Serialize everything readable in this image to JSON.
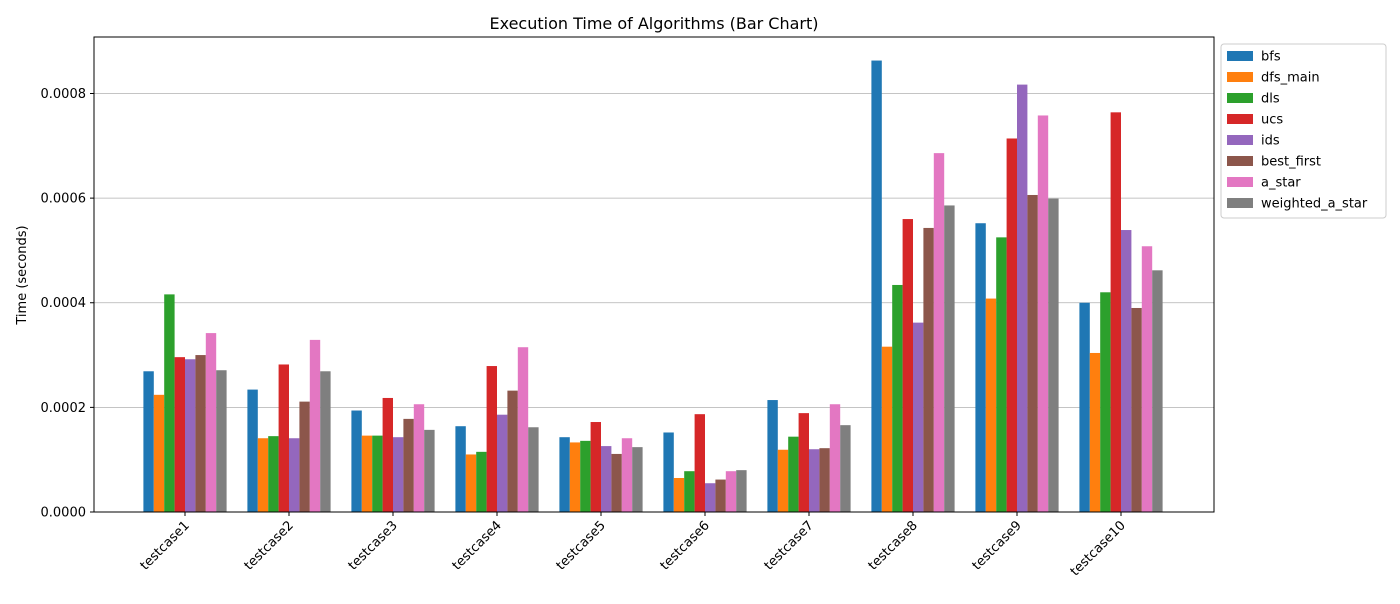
{
  "chart_data": {
    "type": "bar",
    "title": "Execution Time of Algorithms (Bar Chart)",
    "xlabel": "",
    "ylabel": "Time (seconds)",
    "ylim": [
      0,
      0.000908
    ],
    "yticks": [
      "0.0000",
      "0.0002",
      "0.0004",
      "0.0006",
      "0.0008"
    ],
    "ytick_values": [
      0,
      0.0002,
      0.0004,
      0.0006,
      0.0008
    ],
    "grid": "horizontal",
    "legend_position": "top-right (outside plot)",
    "categories": [
      "testcase1",
      "testcase2",
      "testcase3",
      "testcase4",
      "testcase5",
      "testcase6",
      "testcase7",
      "testcase8",
      "testcase9",
      "testcase10"
    ],
    "series": [
      {
        "name": "bfs",
        "color": "#1f77b4",
        "values": [
          0.000269,
          0.000234,
          0.000194,
          0.000164,
          0.000143,
          0.000152,
          0.000214,
          0.000863,
          0.000552,
          0.0004
        ]
      },
      {
        "name": "dfs_main",
        "color": "#ff7f0e",
        "values": [
          0.000224,
          0.000141,
          0.000146,
          0.00011,
          0.000133,
          6.5e-05,
          0.000119,
          0.000316,
          0.000408,
          0.000304
        ]
      },
      {
        "name": "dls",
        "color": "#2ca02c",
        "values": [
          0.000416,
          0.000145,
          0.000146,
          0.000115,
          0.000136,
          7.8e-05,
          0.000144,
          0.000434,
          0.000525,
          0.00042
        ]
      },
      {
        "name": "ucs",
        "color": "#d62728",
        "values": [
          0.000296,
          0.000282,
          0.000218,
          0.000279,
          0.000172,
          0.000187,
          0.000189,
          0.00056,
          0.000714,
          0.000764
        ]
      },
      {
        "name": "ids",
        "color": "#9467bd",
        "values": [
          0.000292,
          0.000141,
          0.000143,
          0.000186,
          0.000126,
          5.5e-05,
          0.00012,
          0.000362,
          0.000817,
          0.000539
        ]
      },
      {
        "name": "best_first",
        "color": "#8c564b",
        "values": [
          0.0003,
          0.000211,
          0.000178,
          0.000232,
          0.000111,
          6.2e-05,
          0.000122,
          0.000543,
          0.000606,
          0.00039
        ]
      },
      {
        "name": "a_star",
        "color": "#e377c2",
        "values": [
          0.000342,
          0.000329,
          0.000206,
          0.000315,
          0.000141,
          7.8e-05,
          0.000206,
          0.000686,
          0.000758,
          0.000508
        ]
      },
      {
        "name": "weighted_a_star",
        "color": "#7f7f7f",
        "values": [
          0.000271,
          0.000269,
          0.000157,
          0.000162,
          0.000124,
          8e-05,
          0.000166,
          0.000586,
          0.000599,
          0.000462
        ]
      }
    ]
  }
}
